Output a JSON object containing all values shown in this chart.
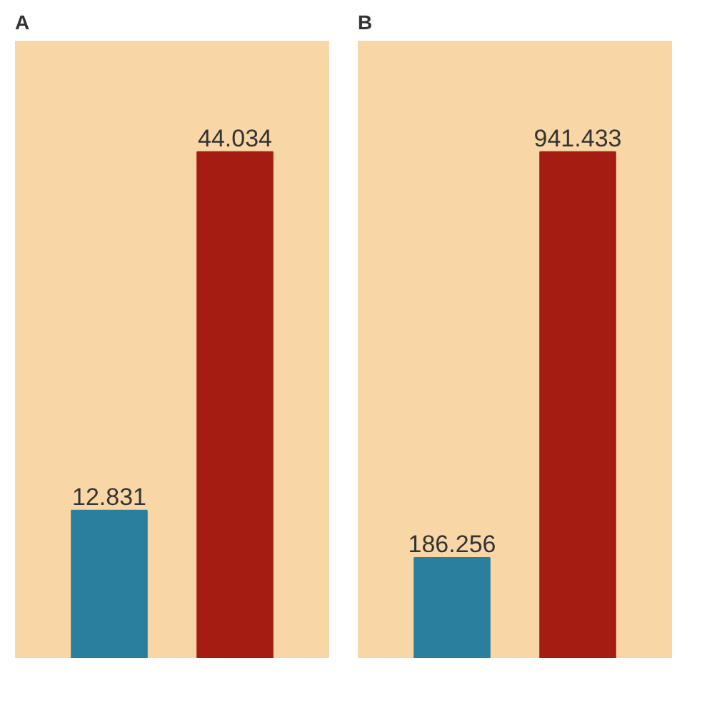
{
  "chart_data": [
    {
      "type": "bar",
      "title": "A",
      "categories": [
        null,
        null
      ],
      "values": [
        12.831,
        44.034
      ],
      "colors": [
        "#2a7f9e",
        "#a51c12"
      ],
      "data_labels": true
    },
    {
      "type": "bar",
      "title": "B",
      "categories": [
        null,
        null
      ],
      "values": [
        186.256,
        941.433
      ],
      "colors": [
        "#2a7f9e",
        "#a51c12"
      ],
      "data_labels": true
    }
  ]
}
